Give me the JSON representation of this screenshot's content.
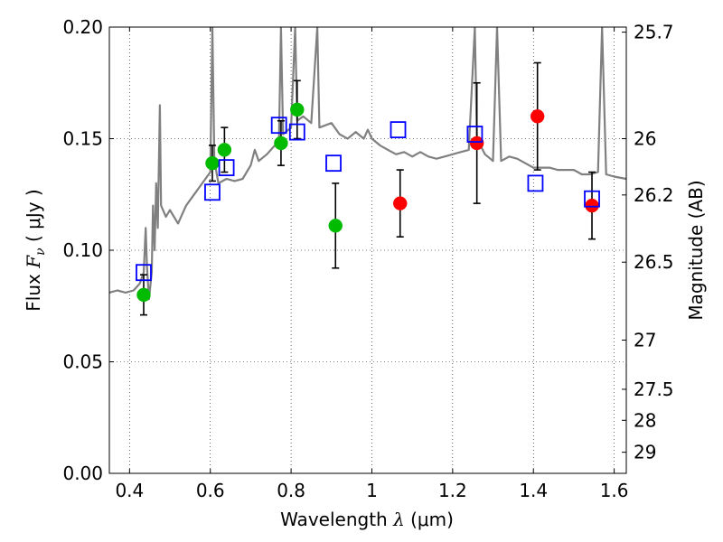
{
  "chart_data": {
    "type": "scatter",
    "xlabel": "Wavelength  λ (μm)",
    "ylabel": "Flux  F_ν  ( μJy )",
    "ylabel_parts": {
      "prefix": "Flux  ",
      "symbol": "F",
      "subscript": "ν",
      "unit": "  ( μJy )"
    },
    "xlabel_parts": {
      "prefix": "Wavelength  ",
      "symbol": "λ",
      "unit": " (μm)"
    },
    "ylabel_right": "Magnitude (AB)",
    "xlim": [
      0.35,
      1.63
    ],
    "ylim": [
      0.0,
      0.2
    ],
    "grid": true,
    "x_ticks": [
      {
        "value": 0.4,
        "label": "0.4"
      },
      {
        "value": 0.6,
        "label": "0.6"
      },
      {
        "value": 0.8,
        "label": "0.8"
      },
      {
        "value": 1.0,
        "label": "1"
      },
      {
        "value": 1.2,
        "label": "1.2"
      },
      {
        "value": 1.4,
        "label": "1.4"
      },
      {
        "value": 1.6,
        "label": "1.6"
      }
    ],
    "y_ticks": [
      {
        "value": 0.0,
        "label": "0.00"
      },
      {
        "value": 0.05,
        "label": "0.05"
      },
      {
        "value": 0.1,
        "label": "0.10"
      },
      {
        "value": 0.15,
        "label": "0.15"
      },
      {
        "value": 0.2,
        "label": "0.20"
      }
    ],
    "right_ticks": [
      {
        "mag": 25.7,
        "label": "25.7"
      },
      {
        "mag": 26.0,
        "label": "26"
      },
      {
        "mag": 26.2,
        "label": "26.2"
      },
      {
        "mag": 26.5,
        "label": "26.5"
      },
      {
        "mag": 27.0,
        "label": "27"
      },
      {
        "mag": 27.5,
        "label": "27.5"
      },
      {
        "mag": 28.0,
        "label": "28"
      },
      {
        "mag": 29.0,
        "label": "29"
      }
    ],
    "colors": {
      "model": "#808080",
      "optical": "#00bb00",
      "infrared": "#ff0000",
      "model_photometry": "#0000ff",
      "errorbar": "#000000"
    },
    "series": [
      {
        "kind": "line",
        "points": [
          [
            0.35,
            0.081
          ],
          [
            0.37,
            0.082
          ],
          [
            0.39,
            0.081
          ],
          [
            0.41,
            0.082
          ],
          [
            0.425,
            0.085
          ],
          [
            0.435,
            0.09
          ],
          [
            0.44,
            0.11
          ],
          [
            0.443,
            0.093
          ],
          [
            0.448,
            0.078
          ],
          [
            0.452,
            0.085
          ],
          [
            0.455,
            0.09
          ],
          [
            0.458,
            0.12
          ],
          [
            0.462,
            0.1
          ],
          [
            0.466,
            0.13
          ],
          [
            0.47,
            0.11
          ],
          [
            0.475,
            0.165
          ],
          [
            0.478,
            0.12
          ],
          [
            0.49,
            0.115
          ],
          [
            0.5,
            0.118
          ],
          [
            0.52,
            0.112
          ],
          [
            0.54,
            0.12
          ],
          [
            0.56,
            0.125
          ],
          [
            0.58,
            0.13
          ],
          [
            0.6,
            0.135
          ],
          [
            0.605,
            0.2
          ],
          [
            0.61,
            0.14
          ],
          [
            0.62,
            0.13
          ],
          [
            0.64,
            0.132
          ],
          [
            0.66,
            0.131
          ],
          [
            0.68,
            0.132
          ],
          [
            0.7,
            0.138
          ],
          [
            0.71,
            0.145
          ],
          [
            0.72,
            0.14
          ],
          [
            0.74,
            0.143
          ],
          [
            0.76,
            0.147
          ],
          [
            0.77,
            0.15
          ],
          [
            0.775,
            0.2
          ],
          [
            0.78,
            0.152
          ],
          [
            0.8,
            0.155
          ],
          [
            0.81,
            0.2
          ],
          [
            0.815,
            0.158
          ],
          [
            0.83,
            0.16
          ],
          [
            0.85,
            0.157
          ],
          [
            0.865,
            0.2
          ],
          [
            0.87,
            0.155
          ],
          [
            0.9,
            0.157
          ],
          [
            0.92,
            0.152
          ],
          [
            0.94,
            0.15
          ],
          [
            0.96,
            0.153
          ],
          [
            0.98,
            0.15
          ],
          [
            0.99,
            0.154
          ],
          [
            1.0,
            0.15
          ],
          [
            1.02,
            0.147
          ],
          [
            1.04,
            0.145
          ],
          [
            1.06,
            0.143
          ],
          [
            1.08,
            0.144
          ],
          [
            1.1,
            0.142
          ],
          [
            1.12,
            0.144
          ],
          [
            1.14,
            0.142
          ],
          [
            1.16,
            0.141
          ],
          [
            1.18,
            0.142
          ],
          [
            1.2,
            0.143
          ],
          [
            1.22,
            0.144
          ],
          [
            1.24,
            0.145
          ],
          [
            1.255,
            0.2
          ],
          [
            1.26,
            0.15
          ],
          [
            1.28,
            0.143
          ],
          [
            1.3,
            0.14
          ],
          [
            1.31,
            0.2
          ],
          [
            1.32,
            0.14
          ],
          [
            1.34,
            0.142
          ],
          [
            1.36,
            0.141
          ],
          [
            1.38,
            0.139
          ],
          [
            1.4,
            0.137
          ],
          [
            1.42,
            0.137
          ],
          [
            1.44,
            0.137
          ],
          [
            1.46,
            0.136
          ],
          [
            1.48,
            0.136
          ],
          [
            1.5,
            0.136
          ],
          [
            1.52,
            0.134
          ],
          [
            1.54,
            0.134
          ],
          [
            1.56,
            0.135
          ],
          [
            1.57,
            0.2
          ],
          [
            1.58,
            0.134
          ],
          [
            1.6,
            0.133
          ],
          [
            1.63,
            0.132
          ]
        ]
      },
      {
        "kind": "points",
        "marker": "circle",
        "color_key": "optical",
        "x": [
          0.435,
          0.605,
          0.635,
          0.775,
          0.815,
          0.91
        ],
        "y": [
          0.08,
          0.139,
          0.145,
          0.148,
          0.163,
          0.111
        ],
        "yerr": [
          0.009,
          0.008,
          0.01,
          0.01,
          0.013,
          0.019
        ]
      },
      {
        "kind": "points",
        "marker": "circle",
        "color_key": "infrared",
        "x": [
          1.07,
          1.26,
          1.41,
          1.545
        ],
        "y": [
          0.121,
          0.148,
          0.16,
          0.12
        ],
        "yerr": [
          0.015,
          0.027,
          0.024,
          0.015
        ]
      },
      {
        "kind": "points",
        "marker": "square",
        "color_key": "model_photometry",
        "x": [
          0.435,
          0.605,
          0.64,
          0.77,
          0.815,
          0.905,
          1.065,
          1.255,
          1.405,
          1.545
        ],
        "y": [
          0.09,
          0.126,
          0.137,
          0.156,
          0.153,
          0.139,
          0.154,
          0.152,
          0.13,
          0.123
        ]
      }
    ]
  }
}
